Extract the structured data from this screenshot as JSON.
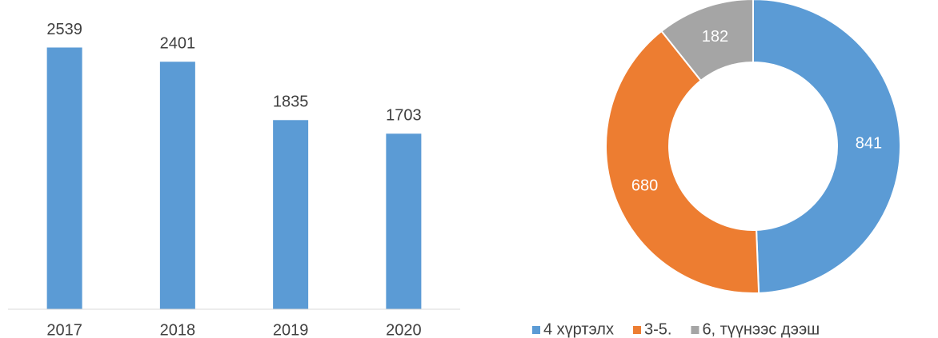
{
  "chart_data": [
    {
      "type": "bar",
      "categories": [
        "2017",
        "2018",
        "2019",
        "2020"
      ],
      "values": [
        2539,
        2401,
        1835,
        1703
      ],
      "color": "#5b9bd5",
      "ylim": [
        0,
        3000
      ]
    },
    {
      "type": "donut",
      "categories": [
        "4 хүртэлх",
        "3-5.",
        "6, түүнээс дээш"
      ],
      "values": [
        841,
        680,
        182
      ],
      "colors": [
        "#5b9bd5",
        "#ed7d31",
        "#a5a5a5"
      ],
      "legend": "bottom"
    }
  ]
}
